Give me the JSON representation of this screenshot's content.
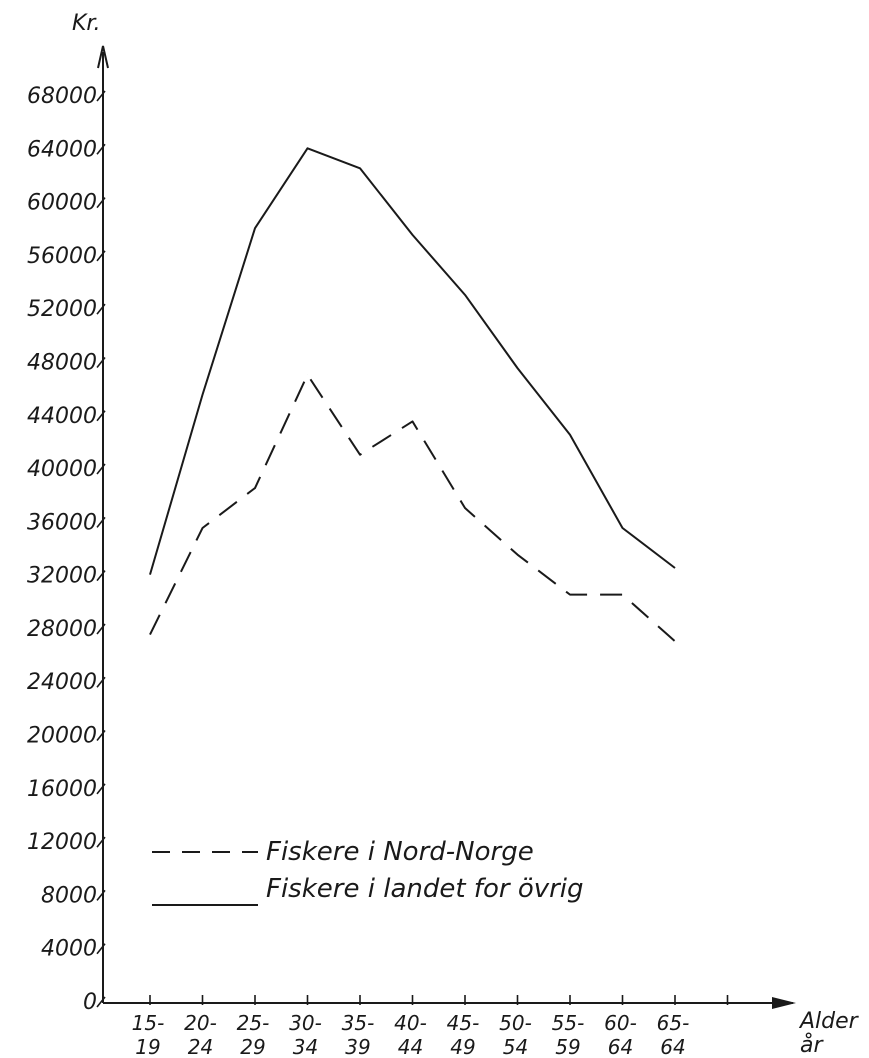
{
  "chart_data": {
    "type": "line",
    "ylabel": "Kr.",
    "xlabel_line1": "Alder",
    "xlabel_line2": "år",
    "ylim": [
      0,
      68000
    ],
    "yticks": [
      {
        "value": 0,
        "label": "0"
      },
      {
        "value": 4000,
        "label": "4000"
      },
      {
        "value": 8000,
        "label": "8000"
      },
      {
        "value": 12000,
        "label": "12000"
      },
      {
        "value": 16000,
        "label": "16000"
      },
      {
        "value": 20000,
        "label": "20000"
      },
      {
        "value": 24000,
        "label": "24000"
      },
      {
        "value": 28000,
        "label": "28000"
      },
      {
        "value": 32000,
        "label": "32000"
      },
      {
        "value": 36000,
        "label": "36000"
      },
      {
        "value": 40000,
        "label": "40000"
      },
      {
        "value": 44000,
        "label": "44000"
      },
      {
        "value": 48000,
        "label": "48000"
      },
      {
        "value": 52000,
        "label": "52000"
      },
      {
        "value": 56000,
        "label": "56000"
      },
      {
        "value": 60000,
        "label": "60000"
      },
      {
        "value": 64000,
        "label": "64000"
      },
      {
        "value": 68000,
        "label": "68000"
      }
    ],
    "categories": [
      {
        "top": "15-",
        "bottom": "19"
      },
      {
        "top": "20-",
        "bottom": "24"
      },
      {
        "top": "25-",
        "bottom": "29"
      },
      {
        "top": "30-",
        "bottom": "34"
      },
      {
        "top": "35-",
        "bottom": "39"
      },
      {
        "top": "40-",
        "bottom": "44"
      },
      {
        "top": "45-",
        "bottom": "49"
      },
      {
        "top": "50-",
        "bottom": "54"
      },
      {
        "top": "55-",
        "bottom": "59"
      },
      {
        "top": "60-",
        "bottom": "64"
      },
      {
        "top": "65-",
        "bottom": "64"
      }
    ],
    "series": [
      {
        "name": "Fiskere i Nord-Norge",
        "style": "dashed",
        "values": [
          27500,
          35500,
          38500,
          47000,
          41000,
          43500,
          37000,
          33500,
          30500,
          30500,
          27000
        ]
      },
      {
        "name": "Fiskere i landet for övrig",
        "style": "solid",
        "values": [
          32000,
          45500,
          58000,
          64000,
          62500,
          57500,
          53000,
          47500,
          42500,
          35500,
          32500
        ]
      }
    ],
    "legend_position": "bottom-left",
    "grid": false,
    "line_color": "#1a1a1a"
  }
}
